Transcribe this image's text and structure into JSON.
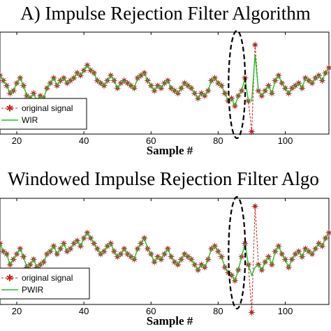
{
  "chart_data": [
    {
      "type": "line",
      "title": "A) Impulse Rejection Filter Algorithm",
      "xlabel": "Sample #",
      "ylabel": "",
      "xlim": [
        15,
        113
      ],
      "ylim": [
        -2,
        2
      ],
      "x_ticks": [
        20,
        40,
        60,
        80,
        100
      ],
      "x_tick_labels": [
        "20",
        "40",
        "60",
        "80",
        "100"
      ],
      "legend_placement": "bottom-left",
      "annotation": "dashed ellipse around impulse near sample 85",
      "x": [
        15,
        16,
        17,
        18,
        19,
        20,
        21,
        22,
        23,
        24,
        25,
        26,
        27,
        28,
        29,
        30,
        31,
        32,
        33,
        34,
        35,
        36,
        37,
        38,
        39,
        40,
        41,
        42,
        43,
        44,
        45,
        46,
        47,
        48,
        49,
        50,
        51,
        52,
        53,
        54,
        55,
        56,
        57,
        58,
        59,
        60,
        61,
        62,
        63,
        64,
        65,
        66,
        67,
        68,
        69,
        70,
        71,
        72,
        73,
        74,
        75,
        76,
        77,
        78,
        79,
        80,
        81,
        82,
        83,
        84,
        85,
        86,
        87,
        88,
        89,
        90,
        91,
        92,
        93,
        94,
        95,
        96,
        97,
        98,
        99,
        100,
        101,
        102,
        103,
        104,
        105,
        106,
        107,
        108,
        109,
        110,
        111,
        112,
        113
      ],
      "series": [
        {
          "name": "original signal",
          "color": "#c81e1e",
          "marker": "star",
          "values": [
            0.3,
            0.1,
            -0.1,
            -0.4,
            -0.3,
            0.0,
            0.2,
            -0.1,
            -0.5,
            -0.6,
            -0.4,
            -0.7,
            -0.5,
            -0.6,
            -0.2,
            0.0,
            0.2,
            -0.1,
            0.1,
            0.2,
            0.0,
            0.1,
            0.2,
            0.4,
            0.3,
            0.5,
            0.7,
            0.5,
            0.4,
            0.1,
            0.0,
            -0.1,
            0.1,
            0.3,
            0.1,
            -0.2,
            0.0,
            0.1,
            0.0,
            -0.1,
            -0.2,
            0.2,
            0.3,
            0.4,
            0.1,
            -0.1,
            -0.3,
            -0.1,
            -0.2,
            0.0,
            0.1,
            -0.2,
            -0.3,
            -0.4,
            -0.2,
            0.0,
            -0.1,
            -0.2,
            -0.4,
            -0.6,
            -0.4,
            -0.5,
            -0.3,
            0.1,
            0.2,
            0.0,
            -0.1,
            -0.4,
            -0.7,
            -0.6,
            -0.9,
            -0.5,
            -0.3,
            0.2,
            -0.7,
            -1.9,
            1.5,
            -0.3,
            -0.5,
            -0.3,
            -0.1,
            -0.4,
            0.1,
            0.3,
            0.0,
            -0.2,
            -0.4,
            -0.2,
            -0.1,
            0.0,
            -0.2,
            0.2,
            0.1,
            0.0,
            0.2,
            0.3,
            0.1,
            0.4,
            0.6
          ]
        },
        {
          "name": "WIR",
          "color": "#22c122",
          "marker": "none",
          "values": [
            0.3,
            0.1,
            -0.1,
            -0.4,
            -0.3,
            0.0,
            0.2,
            -0.1,
            -0.5,
            -0.6,
            -0.4,
            -0.7,
            -0.5,
            -0.6,
            -0.2,
            0.0,
            0.2,
            -0.1,
            0.1,
            0.2,
            0.0,
            0.1,
            0.2,
            0.4,
            0.3,
            0.5,
            0.7,
            0.5,
            0.4,
            0.1,
            0.0,
            -0.1,
            0.1,
            0.3,
            0.1,
            -0.2,
            0.0,
            0.1,
            0.0,
            -0.1,
            -0.2,
            0.2,
            0.3,
            0.4,
            0.1,
            -0.1,
            -0.3,
            -0.1,
            -0.2,
            0.0,
            0.1,
            -0.2,
            -0.3,
            -0.4,
            -0.2,
            0.0,
            -0.1,
            -0.2,
            -0.4,
            -0.6,
            -0.4,
            -0.5,
            -0.3,
            0.1,
            0.2,
            0.0,
            -0.1,
            -0.4,
            -0.7,
            -0.6,
            -0.9,
            -0.5,
            -0.3,
            0.2,
            -0.7,
            -0.7,
            1.1,
            -0.3,
            -0.5,
            -0.3,
            -0.1,
            -0.4,
            0.1,
            0.3,
            0.0,
            -0.2,
            -0.4,
            -0.2,
            -0.1,
            0.0,
            -0.2,
            0.2,
            0.1,
            0.0,
            0.2,
            0.3,
            0.1,
            0.4,
            0.6
          ]
        }
      ]
    },
    {
      "type": "line",
      "title": "Windowed Impulse Rejection Filter Algo",
      "xlabel": "Sample #",
      "ylabel": "",
      "xlim": [
        15,
        113
      ],
      "ylim": [
        -2,
        2
      ],
      "x_ticks": [
        20,
        40,
        60,
        80,
        100
      ],
      "x_tick_labels": [
        "20",
        "40",
        "60",
        "80",
        "100"
      ],
      "legend_placement": "bottom-left",
      "annotation": "dashed ellipse around impulse near sample 85",
      "x": [
        15,
        16,
        17,
        18,
        19,
        20,
        21,
        22,
        23,
        24,
        25,
        26,
        27,
        28,
        29,
        30,
        31,
        32,
        33,
        34,
        35,
        36,
        37,
        38,
        39,
        40,
        41,
        42,
        43,
        44,
        45,
        46,
        47,
        48,
        49,
        50,
        51,
        52,
        53,
        54,
        55,
        56,
        57,
        58,
        59,
        60,
        61,
        62,
        63,
        64,
        65,
        66,
        67,
        68,
        69,
        70,
        71,
        72,
        73,
        74,
        75,
        76,
        77,
        78,
        79,
        80,
        81,
        82,
        83,
        84,
        85,
        86,
        87,
        88,
        89,
        90,
        91,
        92,
        93,
        94,
        95,
        96,
        97,
        98,
        99,
        100,
        101,
        102,
        103,
        104,
        105,
        106,
        107,
        108,
        109,
        110,
        111,
        112,
        113
      ],
      "series": [
        {
          "name": "original signal",
          "color": "#c81e1e",
          "marker": "star",
          "values": [
            0.3,
            0.0,
            -0.1,
            -0.5,
            -0.3,
            -0.1,
            0.1,
            -0.2,
            -0.6,
            -0.5,
            -0.3,
            -0.6,
            -0.5,
            -0.4,
            -0.1,
            0.0,
            0.2,
            -0.1,
            0.1,
            0.3,
            0.0,
            0.1,
            0.3,
            0.4,
            0.2,
            0.5,
            0.7,
            0.5,
            0.3,
            0.1,
            -0.1,
            0.0,
            0.2,
            0.3,
            0.0,
            -0.2,
            -0.1,
            0.1,
            -0.1,
            -0.2,
            -0.3,
            0.1,
            0.3,
            0.5,
            0.1,
            -0.1,
            -0.4,
            -0.2,
            -0.3,
            -0.1,
            0.1,
            -0.2,
            -0.4,
            -0.5,
            -0.3,
            -0.1,
            -0.2,
            -0.3,
            -0.5,
            -0.7,
            -0.5,
            -0.6,
            -0.3,
            0.1,
            0.2,
            0.0,
            -0.2,
            -0.6,
            -0.8,
            -0.9,
            -1.1,
            -0.7,
            -0.2,
            0.3,
            -0.5,
            -2.3,
            1.7,
            -0.5,
            -0.7,
            -0.4,
            -0.2,
            -0.5,
            0.0,
            0.2,
            -0.1,
            -0.3,
            -0.6,
            -0.3,
            -0.1,
            0.0,
            -0.2,
            0.1,
            0.0,
            -0.1,
            0.1,
            0.3,
            0.2,
            0.5,
            0.7
          ]
        },
        {
          "name": "PWIR",
          "color": "#22c122",
          "marker": "none",
          "values": [
            0.3,
            0.0,
            -0.1,
            -0.5,
            -0.3,
            -0.1,
            0.1,
            -0.2,
            -0.6,
            -0.5,
            -0.3,
            -0.6,
            -0.5,
            -0.4,
            -0.1,
            0.0,
            0.2,
            -0.1,
            0.1,
            0.3,
            0.0,
            0.1,
            0.3,
            0.4,
            0.2,
            0.5,
            0.7,
            0.5,
            0.3,
            0.1,
            -0.1,
            0.0,
            0.2,
            0.3,
            0.0,
            -0.2,
            -0.1,
            0.1,
            -0.1,
            -0.2,
            -0.3,
            0.1,
            0.3,
            0.5,
            0.1,
            -0.1,
            -0.4,
            -0.2,
            -0.3,
            -0.1,
            0.1,
            -0.2,
            -0.4,
            -0.5,
            -0.3,
            -0.1,
            -0.2,
            -0.3,
            -0.5,
            -0.7,
            -0.5,
            -0.6,
            -0.3,
            0.1,
            0.2,
            0.0,
            -0.2,
            -0.6,
            -0.8,
            -0.9,
            -1.1,
            -0.7,
            -0.2,
            0.3,
            -0.5,
            -0.9,
            -0.6,
            -0.5,
            -0.7,
            -0.4,
            -0.2,
            -0.5,
            0.0,
            0.2,
            -0.1,
            -0.3,
            -0.6,
            -0.3,
            -0.1,
            0.0,
            -0.2,
            0.1,
            0.0,
            -0.1,
            0.1,
            0.3,
            0.2,
            0.5,
            0.7
          ]
        }
      ]
    }
  ]
}
